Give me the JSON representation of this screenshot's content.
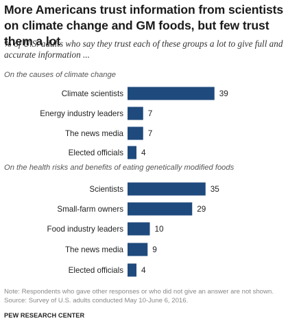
{
  "title": "More Americans trust information from scientists on climate change and GM foods, but few trust them a lot",
  "subtitle": "% of U.S. adults who say they trust each of these groups a lot to give full and accurate information ...",
  "chart_data": {
    "type": "bar",
    "orientation": "horizontal",
    "xlim": [
      0,
      40
    ],
    "grid": false,
    "sections": [
      {
        "label": "On the causes of climate change",
        "categories": [
          "Climate scientists",
          "Energy industry leaders",
          "The news media",
          "Elected officials"
        ],
        "values": [
          39,
          7,
          7,
          4
        ]
      },
      {
        "label": "On the health risks and benefits of eating genetically modified foods",
        "categories": [
          "Scientists",
          "Small-farm owners",
          "Food industry leaders",
          "The news media",
          "Elected officials"
        ],
        "values": [
          35,
          29,
          10,
          9,
          4
        ]
      }
    ],
    "colors": {
      "bar": "#1f4a7d"
    }
  },
  "note": "Note: Respondents who gave other responses or who did not give an answer are not shown.",
  "source": "Source: Survey of U.S. adults conducted May 10-June 6, 2016.",
  "brand": "PEW RESEARCH CENTER"
}
